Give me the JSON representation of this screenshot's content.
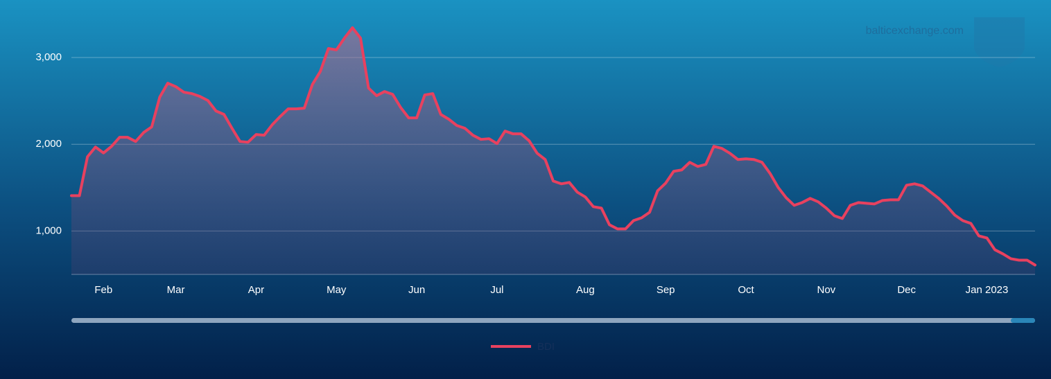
{
  "chart_data": {
    "type": "line",
    "watermark": "balticexchange.com",
    "categories": [
      null,
      null,
      null,
      null,
      "Feb",
      null,
      null,
      null,
      null,
      null,
      null,
      null,
      null,
      "Mar",
      null,
      null,
      null,
      null,
      null,
      null,
      null,
      null,
      null,
      "Apr",
      null,
      null,
      null,
      null,
      null,
      null,
      null,
      null,
      null,
      "May",
      null,
      null,
      null,
      null,
      null,
      null,
      null,
      null,
      null,
      "Jun",
      null,
      null,
      null,
      null,
      null,
      null,
      null,
      null,
      null,
      "Jul",
      null,
      null,
      null,
      null,
      null,
      null,
      null,
      null,
      null,
      null,
      "Aug",
      null,
      null,
      null,
      null,
      null,
      null,
      null,
      null,
      null,
      "Sep",
      null,
      null,
      null,
      null,
      null,
      null,
      null,
      null,
      null,
      "Oct",
      null,
      null,
      null,
      null,
      null,
      null,
      null,
      null,
      null,
      "Nov",
      null,
      null,
      null,
      null,
      null,
      null,
      null,
      null,
      null,
      "Dec",
      null,
      null,
      null,
      null,
      null,
      null,
      null,
      null,
      null,
      "Jan 2023",
      null,
      null,
      null,
      null,
      null,
      null
    ],
    "series": [
      {
        "name": "BDI",
        "color": "#e8415f",
        "values": [
          1408,
          1408,
          1856,
          1968,
          1900,
          1976,
          2080,
          2080,
          2032,
          2136,
          2200,
          2544,
          2704,
          2664,
          2600,
          2584,
          2552,
          2504,
          2384,
          2344,
          2184,
          2032,
          2024,
          2112,
          2104,
          2224,
          2320,
          2408,
          2408,
          2416,
          2688,
          2840,
          3104,
          3088,
          3224,
          3344,
          3224,
          2648,
          2560,
          2608,
          2576,
          2424,
          2304,
          2304,
          2568,
          2584,
          2344,
          2288,
          2216,
          2184,
          2104,
          2056,
          2064,
          2008,
          2152,
          2120,
          2120,
          2040,
          1896,
          1824,
          1576,
          1544,
          1560,
          1448,
          1392,
          1280,
          1264,
          1072,
          1024,
          1024,
          1120,
          1152,
          1216,
          1464,
          1552,
          1688,
          1704,
          1792,
          1744,
          1768,
          1976,
          1952,
          1896,
          1824,
          1832,
          1824,
          1792,
          1664,
          1504,
          1384,
          1296,
          1328,
          1376,
          1336,
          1264,
          1176,
          1144,
          1296,
          1328,
          1320,
          1312,
          1352,
          1360,
          1360,
          1528,
          1544,
          1520,
          1448,
          1376,
          1288,
          1184,
          1120,
          1088,
          944,
          920,
          784,
          736,
          680,
          664,
          664,
          608
        ]
      }
    ],
    "ylim": [
      500,
      3500
    ],
    "yticks": [
      {
        "value": 1000,
        "label": "1,000"
      },
      {
        "value": 2000,
        "label": "2,000"
      },
      {
        "value": 3000,
        "label": "3,000"
      }
    ],
    "grid": true,
    "legend": "bottom"
  }
}
